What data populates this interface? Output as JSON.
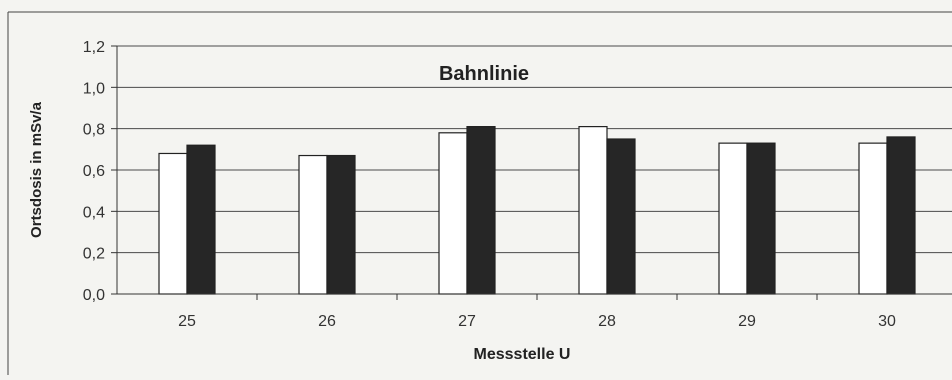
{
  "chart_data": {
    "type": "bar",
    "title": "Bahnlinie",
    "xlabel": "Messstelle  U",
    "ylabel": "Ortsdosis in mSv/a",
    "categories": [
      "25",
      "26",
      "27",
      "28",
      "29",
      "30"
    ],
    "series": [
      {
        "values": [
          0.68,
          0.67,
          0.78,
          0.81,
          0.73,
          0.73
        ],
        "color": "#ffffff"
      },
      {
        "values": [
          0.72,
          0.67,
          0.81,
          0.75,
          0.73,
          0.76
        ],
        "color": "#262626"
      }
    ],
    "ylim": [
      0,
      1.2
    ],
    "yticks": [
      "0,0",
      "0,2",
      "0,4",
      "0,6",
      "0,8",
      "1,0",
      "1,2"
    ],
    "grid": true,
    "legend": "none"
  }
}
